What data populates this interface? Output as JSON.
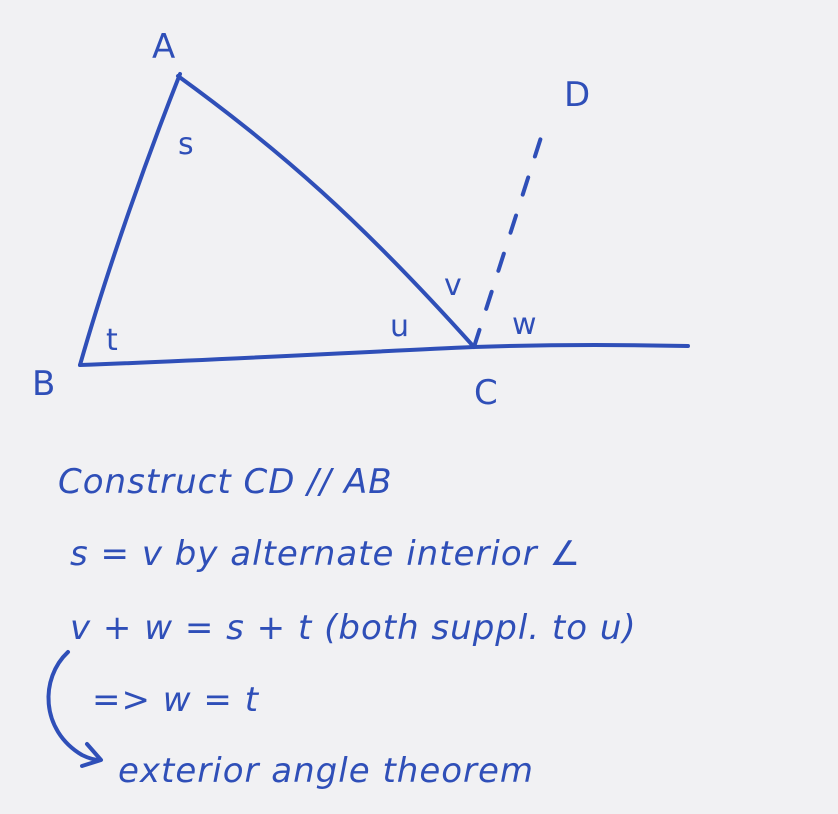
{
  "colors": {
    "ink": "#2f4fb8",
    "paper": "#f1f1f3"
  },
  "diagram": {
    "points": {
      "A": "A",
      "B": "B",
      "C": "C",
      "D": "D"
    },
    "angles": {
      "s": "s",
      "t": "t",
      "u": "u",
      "v": "v",
      "w": "w"
    }
  },
  "notes": {
    "line1": "Construct CD // AB",
    "line2": "s = v by alternate interior ∠",
    "line3": "v + w = s + t  (both suppl. to u)",
    "line4": "=> w = t",
    "line5": "exterior angle theorem"
  }
}
